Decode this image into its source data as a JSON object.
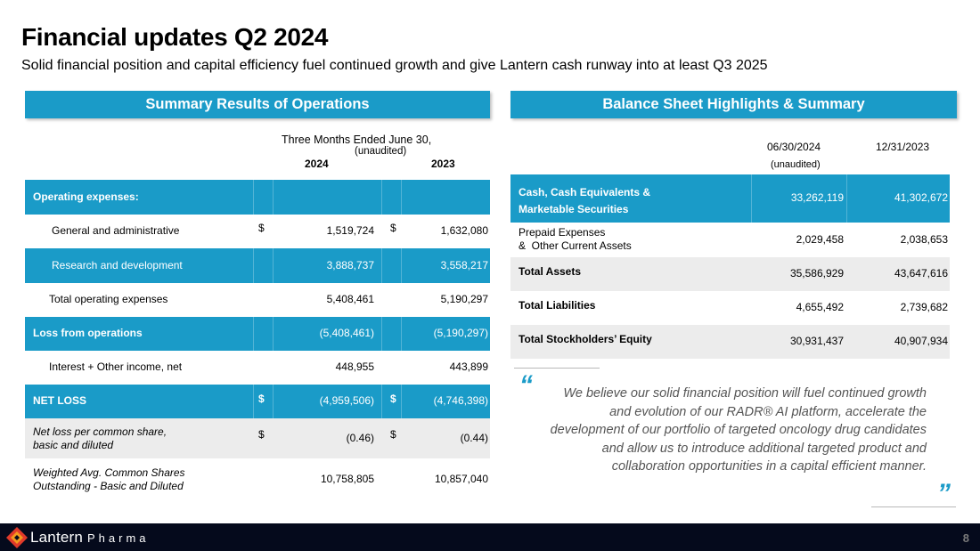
{
  "header": {
    "title": "Financial updates Q2 2024",
    "subtitle": "Solid financial position and capital efficiency fuel continued growth and give Lantern cash runway into at least Q3 2025"
  },
  "left": {
    "band": "Summary Results of Operations",
    "period_header": "Three Months Ended June 30,",
    "unaudited": "(unaudited)",
    "col1": "2024",
    "col2": "2023",
    "rows": [
      {
        "label": "Operating expenses:",
        "cur1": "",
        "v1": "",
        "cur2": "",
        "v2": ""
      },
      {
        "label": "General and administrative",
        "cur1": "$",
        "v1": "1,519,724",
        "cur2": "$",
        "v2": "1,632,080"
      },
      {
        "label": "Research and development",
        "cur1": "",
        "v1": "3,888,737",
        "cur2": "",
        "v2": "3,558,217"
      },
      {
        "label": "Total operating expenses",
        "cur1": "",
        "v1": "5,408,461",
        "cur2": "",
        "v2": "5,190,297"
      },
      {
        "label": "Loss from operations",
        "cur1": "",
        "v1": "(5,408,461)",
        "cur2": "",
        "v2": "(5,190,297)"
      },
      {
        "label": "Interest + Other income, net",
        "cur1": "",
        "v1": "448,955",
        "cur2": "",
        "v2": "443,899"
      },
      {
        "label": "NET LOSS",
        "cur1": "$",
        "v1": "(4,959,506)",
        "cur2": "$",
        "v2": "(4,746,398)"
      },
      {
        "label": "Net loss per common share,\nbasic and diluted",
        "cur1": "$",
        "v1": "(0.46)",
        "cur2": "$",
        "v2": "(0.44)"
      },
      {
        "label": "Weighted Avg. Common Shares\nOutstanding - Basic and Diluted",
        "cur1": "",
        "v1": "10,758,805",
        "cur2": "",
        "v2": "10,857,040"
      }
    ]
  },
  "right": {
    "band": "Balance Sheet Highlights & Summary",
    "col1": "06/30/2024",
    "col1_note": "(unaudited)",
    "col2": "12/31/2023",
    "rows": [
      {
        "label": "Cash, Cash Equivalents &\nMarketable Securities",
        "v1": "33,262,119",
        "v2": "41,302,672"
      },
      {
        "label": "Prepaid Expenses\n&  Other Current Assets",
        "v1": "2,029,458",
        "v2": "2,038,653"
      },
      {
        "label": "Total Assets",
        "v1": "35,586,929",
        "v2": "43,647,616"
      },
      {
        "label": "Total Liabilities",
        "v1": "4,655,492",
        "v2": "2,739,682"
      },
      {
        "label": "Total Stockholders’ Equity",
        "v1": "30,931,437",
        "v2": "40,907,934"
      }
    ]
  },
  "quote": {
    "open_mark": "“",
    "close_mark": "”",
    "text": "We believe our solid financial position will fuel continued growth and evolution of our RADR® AI platform, accelerate the development of our portfolio of targeted oncology drug candidates and allow us to introduce additional targeted product and collaboration opportunities in a capital efficient manner."
  },
  "footer": {
    "logo_word": "Lantern",
    "logo_word2": "Pharma",
    "page_number": "8"
  },
  "colors": {
    "accent": "#1a9bc8",
    "row_grey": "#ececec",
    "footer_bg": "#050a1c",
    "logo_red": "#e03a2a",
    "logo_orange": "#f39a1e"
  }
}
